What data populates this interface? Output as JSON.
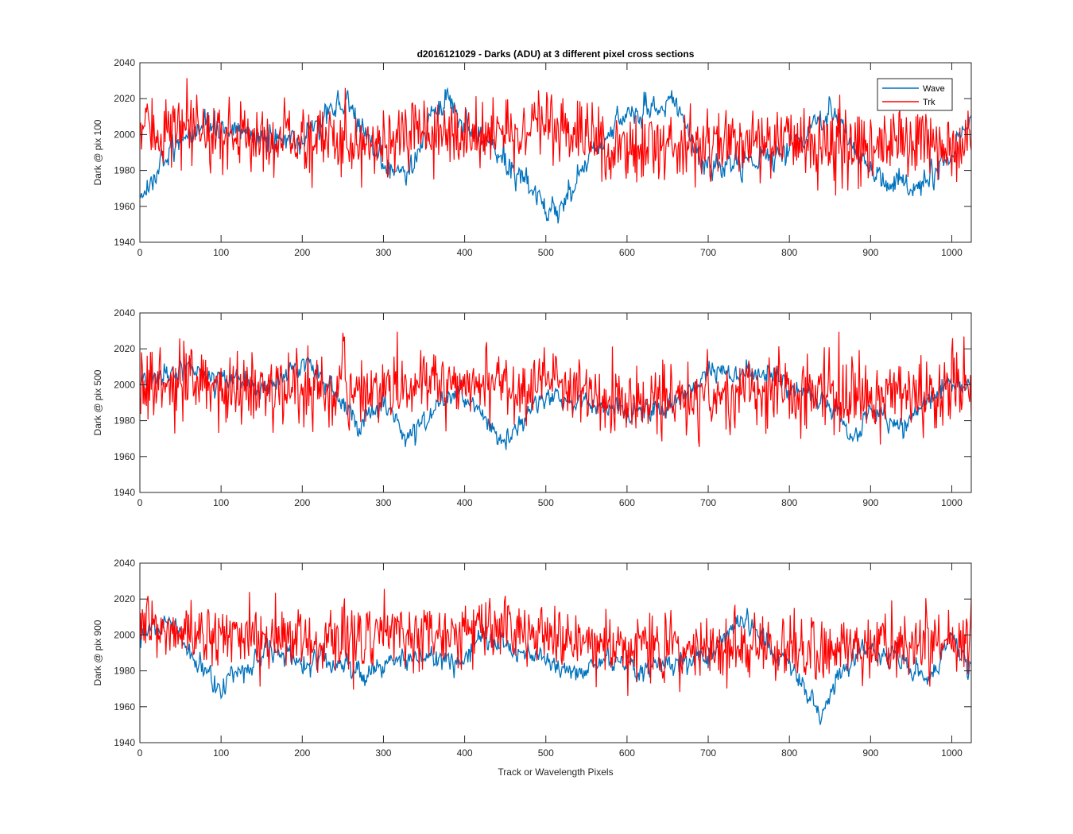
{
  "figure": {
    "title": "d2016121029 - Darks (ADU) at 3 different pixel cross sections",
    "xlabel": "Track or Wavelength Pixels"
  },
  "colors": {
    "wave": "#0072BD",
    "trk": "#FF0000",
    "axis": "#262626"
  },
  "chart_data": [
    {
      "type": "line",
      "ylabel": "Dark @ pix 100",
      "xlim": [
        0,
        1024
      ],
      "ylim": [
        1940,
        2040
      ],
      "xticks": [
        0,
        100,
        200,
        300,
        400,
        500,
        600,
        700,
        800,
        900,
        1000
      ],
      "yticks": [
        1940,
        1960,
        1980,
        2000,
        2020,
        2040
      ],
      "grid": false,
      "legend": {
        "location": "top-right",
        "entries": [
          "Wave",
          "Trk"
        ]
      },
      "series": [
        {
          "name": "Wave",
          "color": "#0072BD",
          "approx_trend": [
            [
              0,
              1963
            ],
            [
              20,
              1980
            ],
            [
              50,
              1997
            ],
            [
              100,
              2003
            ],
            [
              150,
              1997
            ],
            [
              200,
              1998
            ],
            [
              230,
              2013
            ],
            [
              260,
              2015
            ],
            [
              280,
              2000
            ],
            [
              300,
              1985
            ],
            [
              330,
              1978
            ],
            [
              360,
              2010
            ],
            [
              380,
              2017
            ],
            [
              400,
              2005
            ],
            [
              430,
              1995
            ],
            [
              460,
              1980
            ],
            [
              480,
              1970
            ],
            [
              500,
              1960
            ],
            [
              530,
              1965
            ],
            [
              560,
              1992
            ],
            [
              600,
              2010
            ],
            [
              640,
              2015
            ],
            [
              660,
              2018
            ],
            [
              680,
              1995
            ],
            [
              700,
              1980
            ],
            [
              750,
              1985
            ],
            [
              800,
              1990
            ],
            [
              830,
              2005
            ],
            [
              850,
              2015
            ],
            [
              870,
              2000
            ],
            [
              900,
              1980
            ],
            [
              930,
              1972
            ],
            [
              960,
              1970
            ],
            [
              990,
              1985
            ],
            [
              1024,
              2005
            ]
          ],
          "noise_amplitude": 6
        },
        {
          "name": "Trk",
          "color": "#FF0000",
          "approx_trend": [
            [
              0,
              2003
            ],
            [
              100,
              2000
            ],
            [
              200,
              1997
            ],
            [
              300,
              1997
            ],
            [
              400,
              2000
            ],
            [
              500,
              2003
            ],
            [
              600,
              1993
            ],
            [
              700,
              1995
            ],
            [
              800,
              1997
            ],
            [
              900,
              1993
            ],
            [
              1024,
              1995
            ]
          ],
          "noise_amplitude": 13
        }
      ]
    },
    {
      "type": "line",
      "ylabel": "Dark @ pix 500",
      "xlim": [
        0,
        1024
      ],
      "ylim": [
        1940,
        2040
      ],
      "xticks": [
        0,
        100,
        200,
        300,
        400,
        500,
        600,
        700,
        800,
        900,
        1000
      ],
      "yticks": [
        1940,
        1960,
        1980,
        2000,
        2020,
        2040
      ],
      "grid": false,
      "series": [
        {
          "name": "Wave",
          "color": "#0072BD",
          "approx_trend": [
            [
              0,
              2000
            ],
            [
              50,
              2008
            ],
            [
              100,
              2003
            ],
            [
              150,
              1997
            ],
            [
              200,
              2010
            ],
            [
              220,
              2005
            ],
            [
              250,
              1990
            ],
            [
              270,
              1978
            ],
            [
              300,
              1990
            ],
            [
              330,
              1970
            ],
            [
              360,
              1985
            ],
            [
              380,
              1995
            ],
            [
              400,
              1992
            ],
            [
              420,
              1985
            ],
            [
              450,
              1968
            ],
            [
              480,
              1985
            ],
            [
              500,
              1993
            ],
            [
              550,
              1990
            ],
            [
              600,
              1983
            ],
            [
              650,
              1988
            ],
            [
              700,
              2005
            ],
            [
              750,
              2008
            ],
            [
              780,
              2005
            ],
            [
              800,
              1997
            ],
            [
              850,
              1990
            ],
            [
              880,
              1970
            ],
            [
              900,
              1985
            ],
            [
              940,
              1978
            ],
            [
              970,
              1990
            ],
            [
              1000,
              2003
            ],
            [
              1024,
              2000
            ]
          ],
          "noise_amplitude": 5
        },
        {
          "name": "Trk",
          "color": "#FF0000",
          "approx_trend": [
            [
              0,
              2000
            ],
            [
              100,
              1998
            ],
            [
              200,
              1997
            ],
            [
              300,
              1997
            ],
            [
              400,
              2002
            ],
            [
              500,
              2000
            ],
            [
              600,
              1990
            ],
            [
              700,
              1993
            ],
            [
              800,
              1995
            ],
            [
              900,
              1995
            ],
            [
              1024,
              1997
            ]
          ],
          "noise_amplitude": 13
        }
      ]
    },
    {
      "type": "line",
      "ylabel": "Dark @ pix 900",
      "xlim": [
        0,
        1024
      ],
      "ylim": [
        1940,
        2040
      ],
      "xticks": [
        0,
        100,
        200,
        300,
        400,
        500,
        600,
        700,
        800,
        900,
        1000
      ],
      "yticks": [
        1940,
        1960,
        1980,
        2000,
        2020,
        2040
      ],
      "grid": false,
      "series": [
        {
          "name": "Wave",
          "color": "#0072BD",
          "approx_trend": [
            [
              0,
              2003
            ],
            [
              40,
              2008
            ],
            [
              60,
              1990
            ],
            [
              80,
              1978
            ],
            [
              100,
              1970
            ],
            [
              130,
              1985
            ],
            [
              160,
              1990
            ],
            [
              200,
              1985
            ],
            [
              250,
              1985
            ],
            [
              280,
              1975
            ],
            [
              300,
              1985
            ],
            [
              350,
              1988
            ],
            [
              390,
              1985
            ],
            [
              420,
              1998
            ],
            [
              460,
              1993
            ],
            [
              500,
              1985
            ],
            [
              540,
              1978
            ],
            [
              580,
              1988
            ],
            [
              620,
              1980
            ],
            [
              660,
              1985
            ],
            [
              700,
              1990
            ],
            [
              740,
              2008
            ],
            [
              780,
              1995
            ],
            [
              820,
              1970
            ],
            [
              840,
              1953
            ],
            [
              860,
              1980
            ],
            [
              900,
              1992
            ],
            [
              940,
              1985
            ],
            [
              970,
              1975
            ],
            [
              1000,
              2000
            ],
            [
              1024,
              1980
            ]
          ],
          "noise_amplitude": 5
        },
        {
          "name": "Trk",
          "color": "#FF0000",
          "approx_trend": [
            [
              0,
              2003
            ],
            [
              100,
              2000
            ],
            [
              200,
              1997
            ],
            [
              300,
              2000
            ],
            [
              400,
              2003
            ],
            [
              500,
              2000
            ],
            [
              600,
              1993
            ],
            [
              700,
              1993
            ],
            [
              800,
              1993
            ],
            [
              900,
              1993
            ],
            [
              1024,
              1995
            ]
          ],
          "noise_amplitude": 12
        }
      ]
    }
  ]
}
